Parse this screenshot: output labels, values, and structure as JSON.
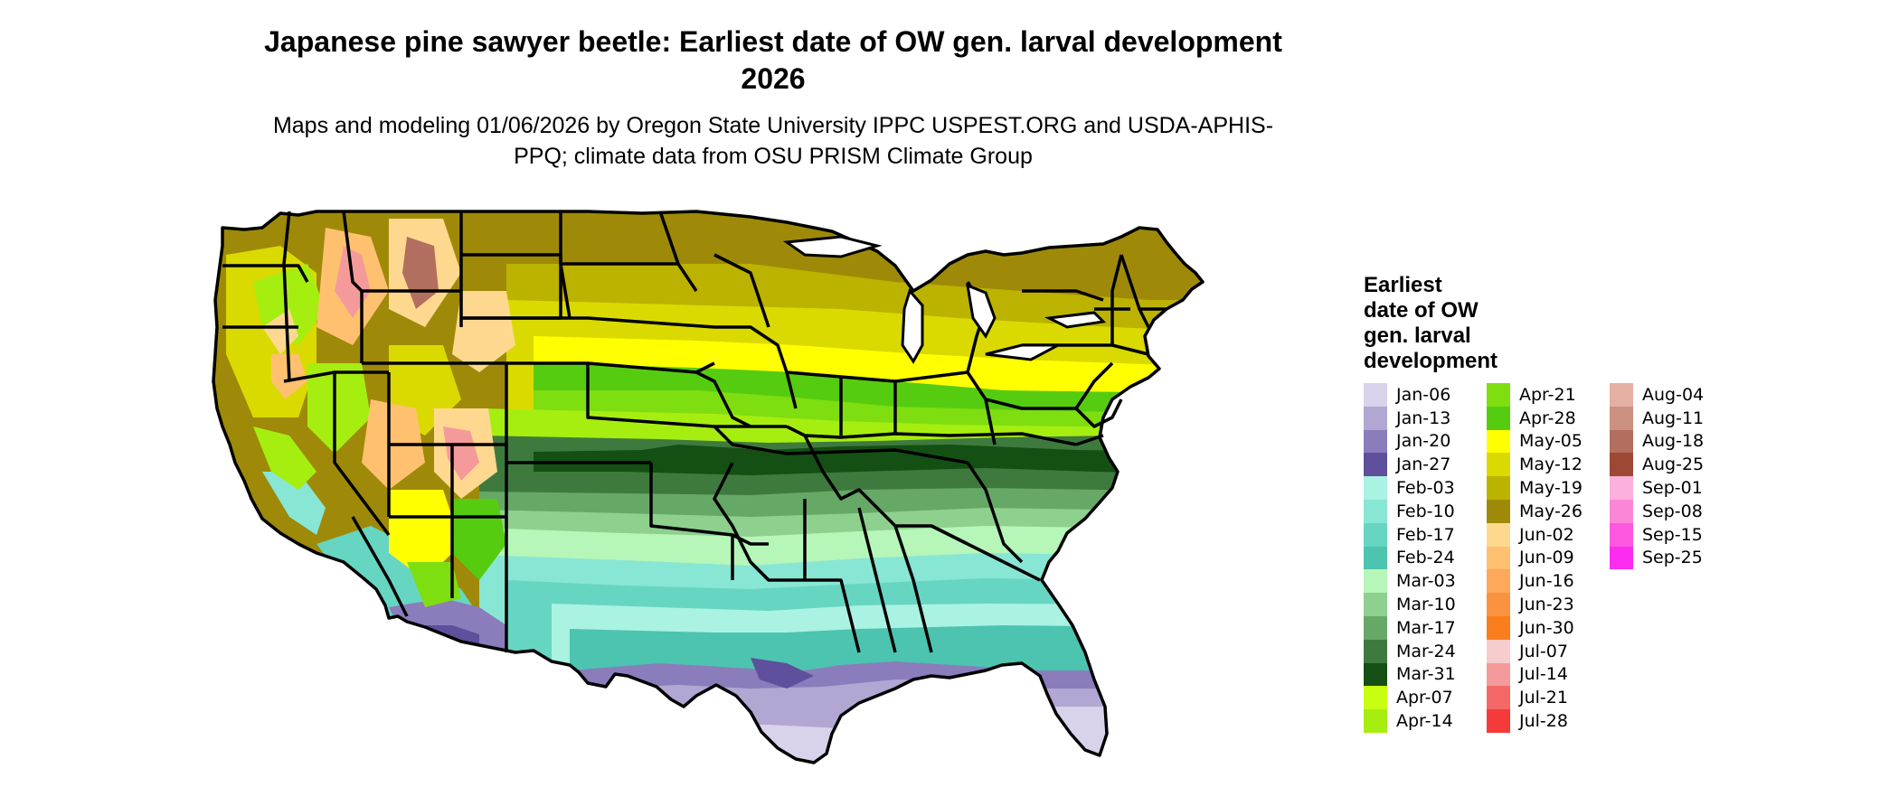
{
  "title": "Japanese pine sawyer beetle: Earliest date of OW gen. larval development 2026",
  "subtitle": "Maps and modeling 01/06/2026 by Oregon State University IPPC USPEST.ORG and USDA-APHIS-PPQ; climate data from OSU PRISM Climate Group",
  "legend": {
    "title": "Earliest\ndate of OW\ngen. larval\ndevelopment",
    "columns": [
      [
        {
          "label": "Jan-06",
          "color": "#d8d2ea"
        },
        {
          "label": "Jan-13",
          "color": "#b2a6d2"
        },
        {
          "label": "Jan-20",
          "color": "#8b7cbc"
        },
        {
          "label": "Jan-27",
          "color": "#5f4f9c"
        },
        {
          "label": "Feb-03",
          "color": "#aaf2e2"
        },
        {
          "label": "Feb-10",
          "color": "#88e6d4"
        },
        {
          "label": "Feb-17",
          "color": "#66d6c2"
        },
        {
          "label": "Feb-24",
          "color": "#4cc4b0"
        },
        {
          "label": "Mar-03",
          "color": "#b6f6b8"
        },
        {
          "label": "Mar-10",
          "color": "#8ed08e"
        },
        {
          "label": "Mar-17",
          "color": "#66a866"
        },
        {
          "label": "Mar-24",
          "color": "#3e7a3e"
        },
        {
          "label": "Mar-31",
          "color": "#145014"
        },
        {
          "label": "Apr-07",
          "color": "#c8ff10"
        },
        {
          "label": "Apr-14",
          "color": "#a6ee10"
        }
      ],
      [
        {
          "label": "Apr-21",
          "color": "#7ede10"
        },
        {
          "label": "Apr-28",
          "color": "#56cc10"
        },
        {
          "label": "May-05",
          "color": "#ffff00"
        },
        {
          "label": "May-12",
          "color": "#dada00"
        },
        {
          "label": "May-19",
          "color": "#bcb200"
        },
        {
          "label": "May-26",
          "color": "#9e8a08"
        },
        {
          "label": "Jun-02",
          "color": "#ffd890"
        },
        {
          "label": "Jun-09",
          "color": "#ffc070"
        },
        {
          "label": "Jun-16",
          "color": "#fda85a"
        },
        {
          "label": "Jun-23",
          "color": "#fb9240"
        },
        {
          "label": "Jun-30",
          "color": "#fa7e1e"
        },
        {
          "label": "Jul-07",
          "color": "#f6cccc"
        },
        {
          "label": "Jul-14",
          "color": "#f59a9a"
        },
        {
          "label": "Jul-21",
          "color": "#f56868"
        },
        {
          "label": "Jul-28",
          "color": "#f53a3a"
        }
      ],
      [
        {
          "label": "Aug-04",
          "color": "#e4b0a4"
        },
        {
          "label": "Aug-11",
          "color": "#cc9080"
        },
        {
          "label": "Aug-18",
          "color": "#b26e5e"
        },
        {
          "label": "Aug-25",
          "color": "#9c4834"
        },
        {
          "label": "Sep-01",
          "color": "#fcb0dc"
        },
        {
          "label": "Sep-08",
          "color": "#fc86d6"
        },
        {
          "label": "Sep-15",
          "color": "#fc58e0"
        },
        {
          "label": "Sep-25",
          "color": "#fc2cf0"
        }
      ]
    ]
  }
}
